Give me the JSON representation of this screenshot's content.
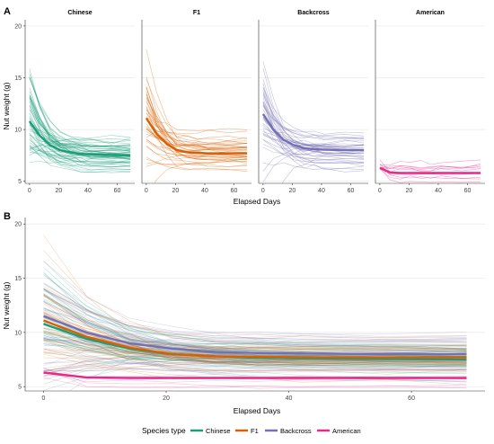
{
  "figure": {
    "panel_labels": [
      "A",
      "B"
    ],
    "legend": {
      "title": "Species type",
      "items": [
        {
          "label": "Chinese",
          "color": "#1b9e77"
        },
        {
          "label": "F1",
          "color": "#d95f02"
        },
        {
          "label": "Backcross",
          "color": "#7570b3"
        },
        {
          "label": "American",
          "color": "#e7298a"
        }
      ]
    }
  },
  "chart_data": [
    {
      "type": "line",
      "panel": "A",
      "facets": [
        "Chinese",
        "F1",
        "Backcross",
        "American"
      ],
      "xlabel": "Elapsed Days",
      "ylabel": "Nut weight (g)",
      "xlim": [
        -3,
        72
      ],
      "ylim": [
        4.8,
        20.6
      ],
      "xticks": [
        0,
        20,
        40,
        60
      ],
      "yticks": [
        5,
        10,
        15,
        20
      ],
      "series": [
        {
          "name": "Chinese",
          "x": [
            0,
            7,
            14,
            21,
            28,
            35,
            42,
            56,
            69
          ],
          "values": [
            10.8,
            9.4,
            8.5,
            8.0,
            7.8,
            7.65,
            7.6,
            7.55,
            7.5
          ]
        },
        {
          "name": "F1",
          "x": [
            0,
            7,
            14,
            21,
            28,
            35,
            42,
            56,
            69
          ],
          "values": [
            11.1,
            9.6,
            8.6,
            8.0,
            7.8,
            7.75,
            7.7,
            7.7,
            7.7
          ]
        },
        {
          "name": "Backcross",
          "x": [
            0,
            7,
            14,
            21,
            28,
            35,
            42,
            56,
            69
          ],
          "values": [
            11.5,
            10.0,
            9.0,
            8.5,
            8.2,
            8.1,
            8.05,
            8.0,
            8.0
          ]
        },
        {
          "name": "American",
          "x": [
            0,
            7,
            14,
            21,
            28,
            35,
            42,
            56,
            69
          ],
          "values": [
            6.3,
            5.85,
            5.8,
            5.8,
            5.8,
            5.8,
            5.8,
            5.8,
            5.8
          ]
        }
      ]
    },
    {
      "type": "line",
      "panel": "B",
      "xlabel": "Elapsed Days",
      "ylabel": "Nut weight (g)",
      "xlim": [
        -3,
        72
      ],
      "ylim": [
        4.6,
        20.6
      ],
      "xticks": [
        0,
        20,
        40,
        60
      ],
      "yticks": [
        5,
        10,
        15,
        20
      ],
      "series": [
        {
          "name": "Chinese",
          "x": [
            0,
            7,
            14,
            21,
            28,
            35,
            42,
            56,
            69
          ],
          "values": [
            10.8,
            9.4,
            8.5,
            8.0,
            7.8,
            7.65,
            7.6,
            7.55,
            7.5
          ]
        },
        {
          "name": "F1",
          "x": [
            0,
            7,
            14,
            21,
            28,
            35,
            42,
            56,
            69
          ],
          "values": [
            11.1,
            9.6,
            8.6,
            8.0,
            7.8,
            7.75,
            7.7,
            7.7,
            7.7
          ]
        },
        {
          "name": "Backcross",
          "x": [
            0,
            7,
            14,
            21,
            28,
            35,
            42,
            56,
            69
          ],
          "values": [
            11.5,
            10.0,
            9.0,
            8.5,
            8.2,
            8.1,
            8.05,
            8.0,
            8.0
          ]
        },
        {
          "name": "American",
          "x": [
            0,
            7,
            14,
            21,
            28,
            35,
            42,
            56,
            69
          ],
          "values": [
            6.3,
            5.85,
            5.8,
            5.8,
            5.8,
            5.8,
            5.8,
            5.8,
            5.8
          ]
        }
      ]
    }
  ]
}
